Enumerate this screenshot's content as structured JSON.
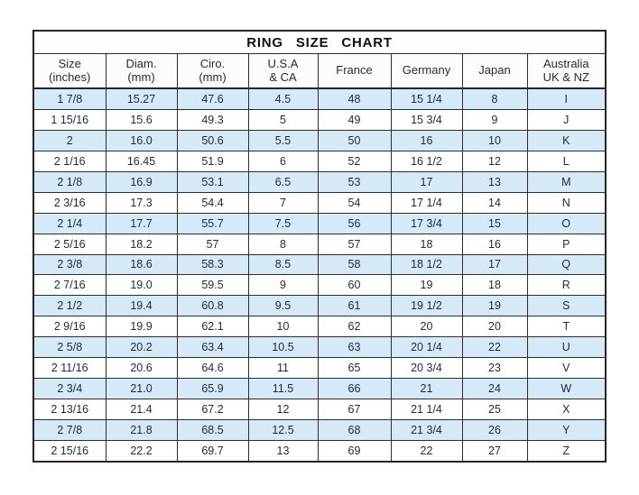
{
  "title": "RING SIZE CHART",
  "colors": {
    "row_alt_background": "#d6e9f7",
    "row_background": "#ffffff",
    "border": "#2d2d2d",
    "text": "#1e2a38",
    "title_text": "#101010"
  },
  "chart_data": {
    "type": "table",
    "title": "RING SIZE CHART",
    "layout_hints": {
      "striped_rows": "odd rows light blue",
      "header_lines": 2,
      "grid": true
    },
    "columns": [
      {
        "id": "size",
        "line1": "Size",
        "line2": "(inches)"
      },
      {
        "id": "diam",
        "line1": "Diam.",
        "line2": "(mm)"
      },
      {
        "id": "ciro",
        "line1": "Ciro.",
        "line2": "(mm)"
      },
      {
        "id": "usa-ca",
        "line1": "U.S.A",
        "line2": "& CA"
      },
      {
        "id": "france",
        "line1": "France",
        "line2": ""
      },
      {
        "id": "germany",
        "line1": "Germany",
        "line2": ""
      },
      {
        "id": "japan",
        "line1": "Japan",
        "line2": ""
      },
      {
        "id": "australia",
        "line1": "Australia",
        "line2": "UK & NZ"
      }
    ],
    "rows": [
      [
        "1 7/8",
        "15.27",
        "47.6",
        "4.5",
        "48",
        "15 1/4",
        "8",
        "I"
      ],
      [
        "1 15/16",
        "15.6",
        "49.3",
        "5",
        "49",
        "15 3/4",
        "9",
        "J"
      ],
      [
        "2",
        "16.0",
        "50.6",
        "5.5",
        "50",
        "16",
        "10",
        "K"
      ],
      [
        "2 1/16",
        "16.45",
        "51.9",
        "6",
        "52",
        "16 1/2",
        "12",
        "L"
      ],
      [
        "2 1/8",
        "16.9",
        "53.1",
        "6.5",
        "53",
        "17",
        "13",
        "M"
      ],
      [
        "2 3/16",
        "17.3",
        "54.4",
        "7",
        "54",
        "17 1/4",
        "14",
        "N"
      ],
      [
        "2 1/4",
        "17.7",
        "55.7",
        "7.5",
        "56",
        "17 3/4",
        "15",
        "O"
      ],
      [
        "2 5/16",
        "18.2",
        "57",
        "8",
        "57",
        "18",
        "16",
        "P"
      ],
      [
        "2 3/8",
        "18.6",
        "58.3",
        "8.5",
        "58",
        "18 1/2",
        "17",
        "Q"
      ],
      [
        "2 7/16",
        "19.0",
        "59.5",
        "9",
        "60",
        "19",
        "18",
        "R"
      ],
      [
        "2 1/2",
        "19.4",
        "60.8",
        "9.5",
        "61",
        "19 1/2",
        "19",
        "S"
      ],
      [
        "2 9/16",
        "19.9",
        "62.1",
        "10",
        "62",
        "20",
        "20",
        "T"
      ],
      [
        "2 5/8",
        "20.2",
        "63.4",
        "10.5",
        "63",
        "20 1/4",
        "22",
        "U"
      ],
      [
        "2 11/16",
        "20.6",
        "64.6",
        "11",
        "65",
        "20 3/4",
        "23",
        "V"
      ],
      [
        "2 3/4",
        "21.0",
        "65.9",
        "11.5",
        "66",
        "21",
        "24",
        "W"
      ],
      [
        "2 13/16",
        "21.4",
        "67.2",
        "12",
        "67",
        "21 1/4",
        "25",
        "X"
      ],
      [
        "2 7/8",
        "21.8",
        "68.5",
        "12.5",
        "68",
        "21 3/4",
        "26",
        "Y"
      ],
      [
        "2 15/16",
        "22.2",
        "69.7",
        "13",
        "69",
        "22",
        "27",
        "Z"
      ]
    ]
  }
}
